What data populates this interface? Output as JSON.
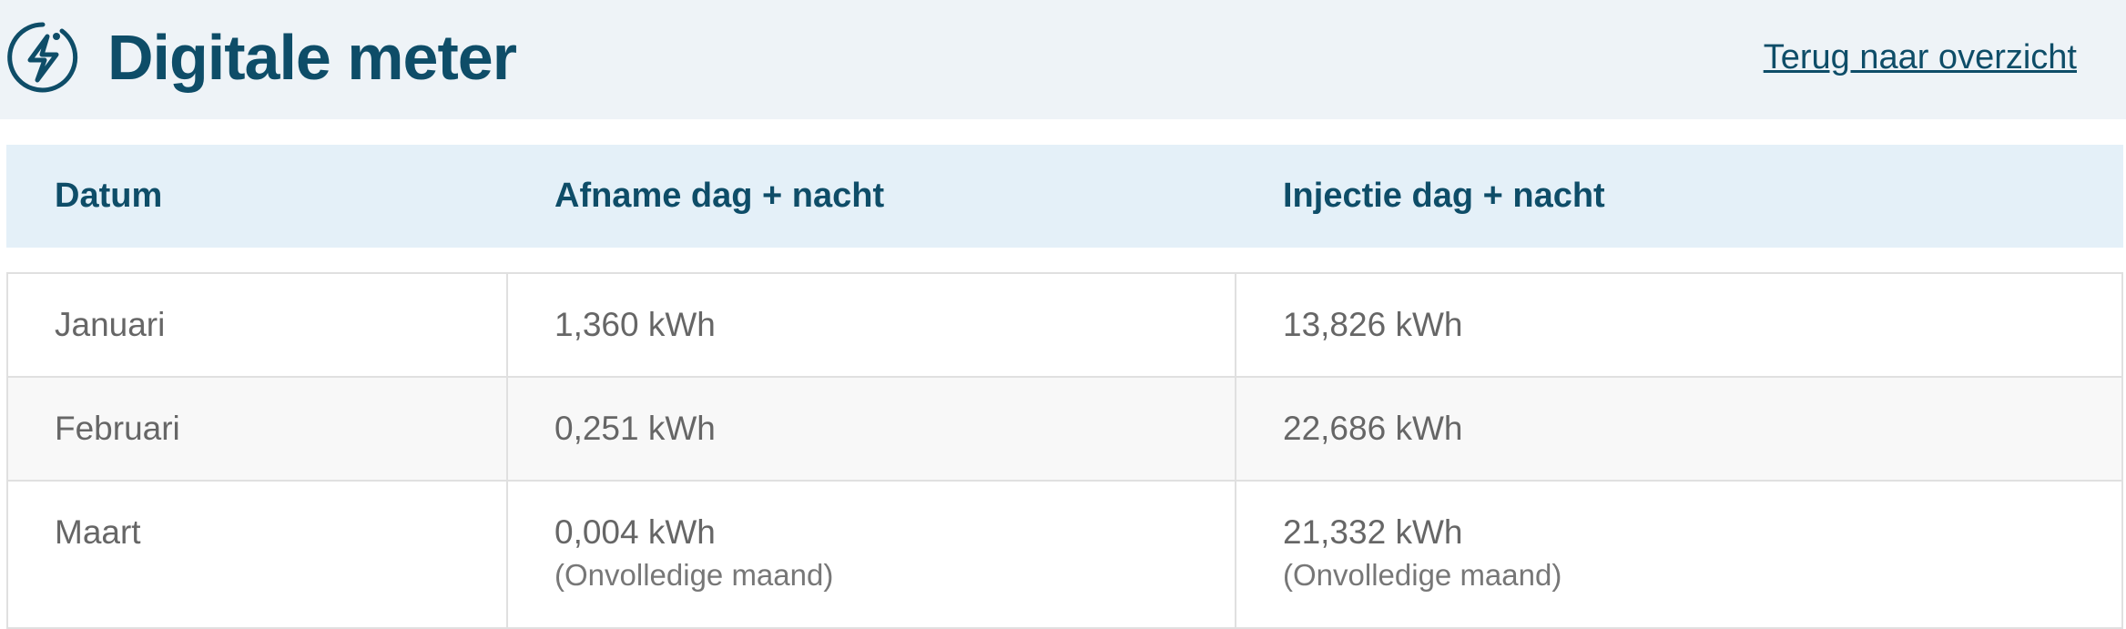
{
  "header": {
    "title": "Digitale meter",
    "icon": "lightning-circle-icon",
    "back_link": "Terug naar overzicht"
  },
  "colors": {
    "brand": "#0e4d68",
    "header_bg": "#eef3f7",
    "table_header_bg": "#e4f0f8"
  },
  "table": {
    "columns": [
      "Datum",
      "Afname dag + nacht",
      "Injectie dag + nacht"
    ],
    "rows": [
      {
        "datum": "Januari",
        "afname": "1,360 kWh",
        "injectie": "13,826 kWh"
      },
      {
        "datum": "Februari",
        "afname": "0,251 kWh",
        "injectie": "22,686 kWh"
      },
      {
        "datum": "Maart",
        "afname": "0,004 kWh",
        "afname_note": "(Onvolledige maand)",
        "injectie": "21,332 kWh",
        "injectie_note": "(Onvolledige maand)"
      }
    ]
  }
}
